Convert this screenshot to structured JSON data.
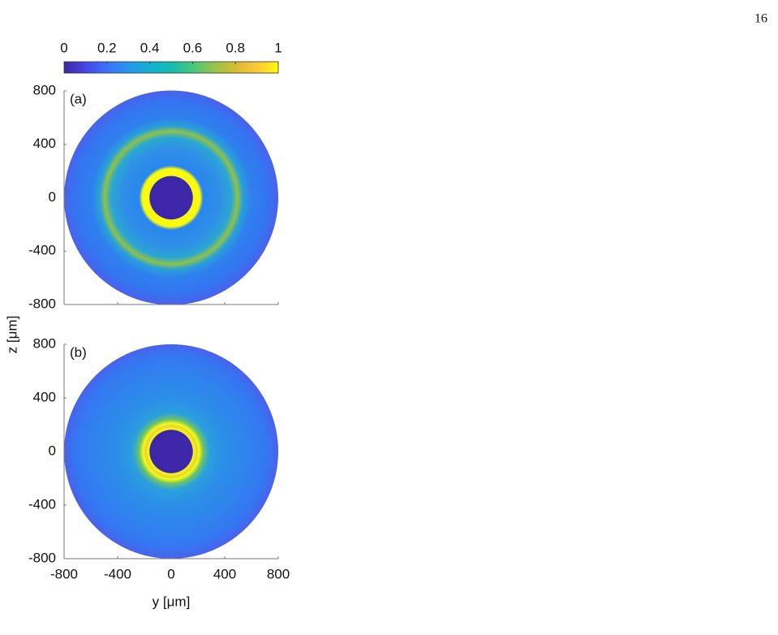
{
  "page_number": "16",
  "chart_data": [
    {
      "type": "heatmap",
      "panel_label": "(a)",
      "ylabel": "z [μm]",
      "xlim": [
        -800,
        800
      ],
      "ylim": [
        -800,
        800
      ],
      "yticks": [
        -800,
        -400,
        0,
        400,
        800
      ],
      "clim": [
        0,
        1
      ],
      "colorbar_ticks": [
        0,
        0.2,
        0.4,
        0.6,
        0.8,
        1
      ],
      "colormap": [
        "#3e26a8",
        "#4745e4",
        "#3873fb",
        "#2797eb",
        "#15b0d3",
        "#13bdb1",
        "#47c67c",
        "#97c449",
        "#d9ba34",
        "#fcc83a",
        "#f9fb0e"
      ]
    },
    {
      "type": "heatmap",
      "panel_label": "(b)",
      "xlabel": "y [μm]",
      "xlim": [
        -800,
        800
      ],
      "ylim": [
        -800,
        800
      ],
      "xticks": [
        -800,
        -400,
        0,
        400,
        800
      ],
      "yticks": [
        -800,
        -400,
        0,
        400,
        800
      ]
    }
  ]
}
